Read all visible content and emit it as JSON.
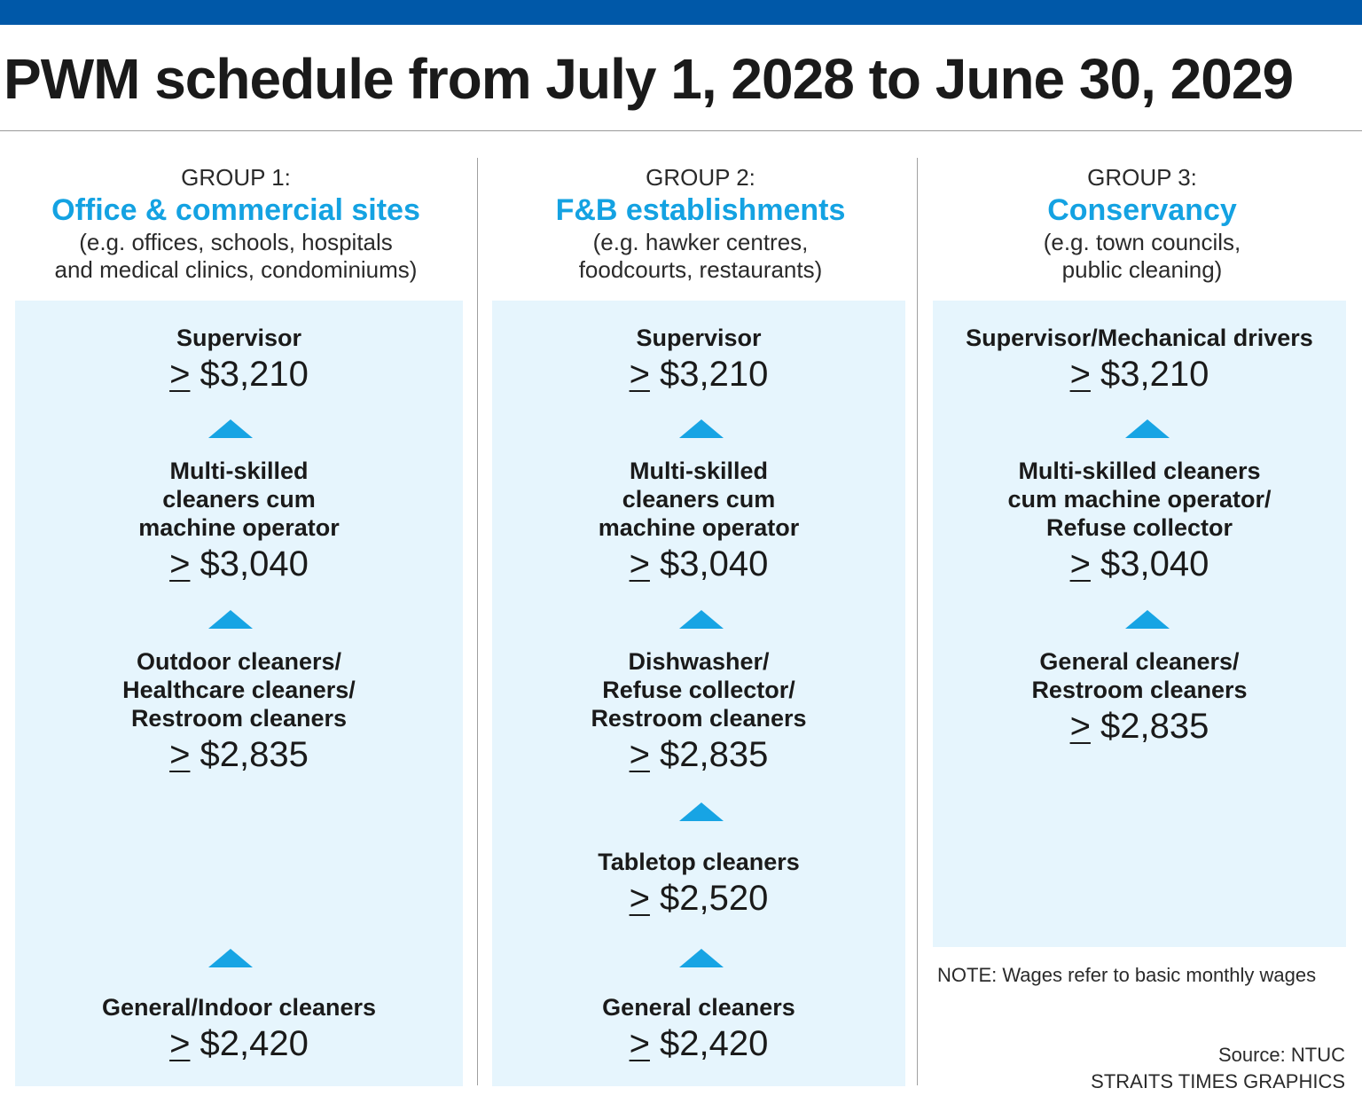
{
  "title": "PWM schedule from July 1, 2028 to June 30, 2029",
  "colors": {
    "top_bar": "#0058a8",
    "group_name": "#14a2e2",
    "panel_bg": "#e6f5fd",
    "arrow": "#17a4e4"
  },
  "groups": [
    {
      "label": "GROUP 1:",
      "name": "Office & commercial sites",
      "examples": [
        "(e.g. offices, schools, hospitals",
        "and medical clinics, condominiums)"
      ],
      "levels": [
        {
          "role": [
            "Supervisor"
          ],
          "ge": ">",
          "wage": " $3,210"
        },
        {
          "role": [
            "Multi-skilled",
            "cleaners cum",
            "machine operator"
          ],
          "ge": ">",
          "wage": " $3,040"
        },
        {
          "role": [
            "Outdoor cleaners/",
            "Healthcare cleaners/",
            "Restroom cleaners"
          ],
          "ge": ">",
          "wage": " $2,835"
        },
        {
          "role": [
            "General/Indoor cleaners"
          ],
          "ge": ">",
          "wage": " $2,420"
        }
      ]
    },
    {
      "label": "GROUP 2:",
      "name": "F&B establishments",
      "examples": [
        "(e.g. hawker centres,",
        "foodcourts, restaurants)"
      ],
      "levels": [
        {
          "role": [
            "Supervisor"
          ],
          "ge": ">",
          "wage": " $3,210"
        },
        {
          "role": [
            "Multi-skilled",
            "cleaners cum",
            "machine operator"
          ],
          "ge": ">",
          "wage": " $3,040"
        },
        {
          "role": [
            "Dishwasher/",
            "Refuse collector/",
            "Restroom cleaners"
          ],
          "ge": ">",
          "wage": " $2,835"
        },
        {
          "role": [
            "Tabletop cleaners"
          ],
          "ge": ">",
          "wage": " $2,520"
        },
        {
          "role": [
            "General cleaners"
          ],
          "ge": ">",
          "wage": " $2,420"
        }
      ]
    },
    {
      "label": "GROUP 3:",
      "name": "Conservancy",
      "examples": [
        "(e.g. town councils,",
        "public cleaning)"
      ],
      "levels": [
        {
          "role": [
            "Supervisor/Mechanical drivers"
          ],
          "ge": ">",
          "wage": " $3,210"
        },
        {
          "role": [
            "Multi-skilled cleaners",
            "cum machine operator/",
            "Refuse collector"
          ],
          "ge": ">",
          "wage": " $3,040"
        },
        {
          "role": [
            "General cleaners/",
            "Restroom cleaners"
          ],
          "ge": ">",
          "wage": " $2,835"
        }
      ]
    }
  ],
  "note": "NOTE: Wages refer to basic monthly wages",
  "source": [
    "Source: NTUC",
    "STRAITS TIMES GRAPHICS"
  ]
}
